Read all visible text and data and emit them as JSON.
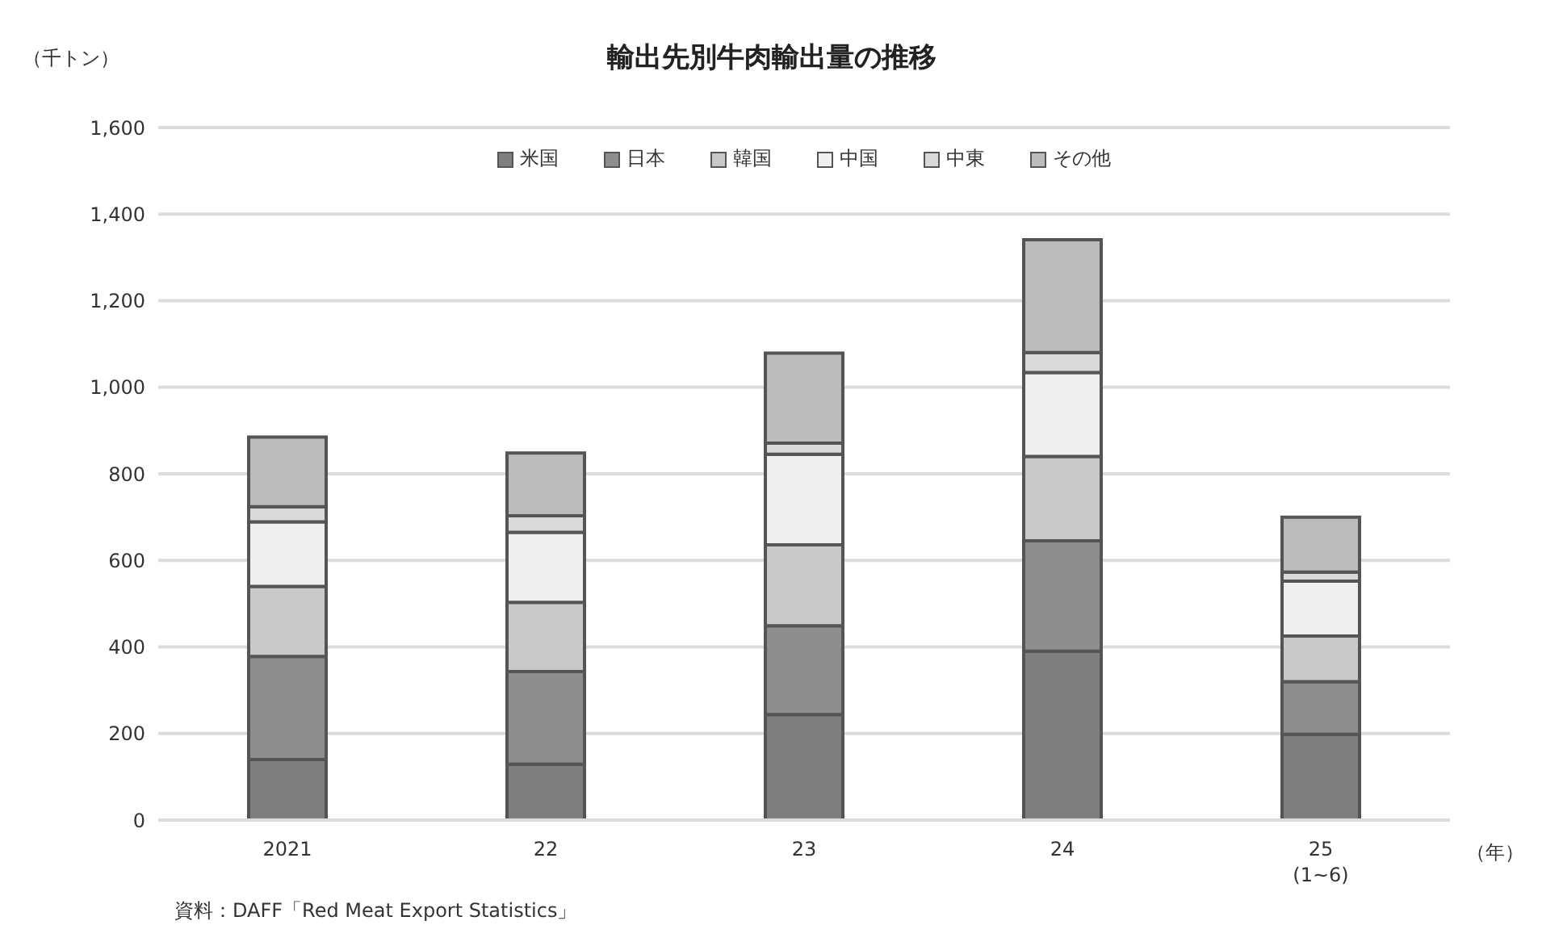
{
  "chart_data": {
    "type": "bar",
    "stacked": true,
    "title": "輸出先別牛肉輸出量の推移",
    "ylabel": "（千トン）",
    "xlabel": "（年）",
    "categories": [
      "2021",
      "22",
      "23",
      "24",
      "25\n(1~6)"
    ],
    "series": [
      {
        "name": "米国",
        "color": "#7f7f7f",
        "values": [
          140,
          129,
          244,
          390,
          198
        ]
      },
      {
        "name": "日本",
        "color": "#8e8e8e",
        "values": [
          238,
          214,
          205,
          255,
          122
        ]
      },
      {
        "name": "韓国",
        "color": "#c9c9c9",
        "values": [
          162,
          160,
          187,
          195,
          105
        ]
      },
      {
        "name": "中国",
        "color": "#efefef",
        "values": [
          149,
          162,
          209,
          194,
          127
        ]
      },
      {
        "name": "中東",
        "color": "#dadada",
        "values": [
          35,
          38,
          26,
          46,
          21
        ]
      },
      {
        "name": "その他",
        "color": "#bcbcbc",
        "values": [
          161,
          145,
          208,
          261,
          127
        ]
      }
    ],
    "ylim": [
      0,
      1600
    ],
    "yticks": [
      0,
      200,
      400,
      600,
      800,
      {
        "value": 1000,
        "label": "1,000"
      },
      {
        "value": 1200,
        "label": "1,200"
      },
      {
        "value": 1400,
        "label": "1,400"
      },
      {
        "value": 1600,
        "label": "1,600"
      }
    ],
    "grid": "y",
    "legend": "top",
    "annotations": [
      "資料：DAFF「Red Meat Export Statistics」"
    ]
  }
}
